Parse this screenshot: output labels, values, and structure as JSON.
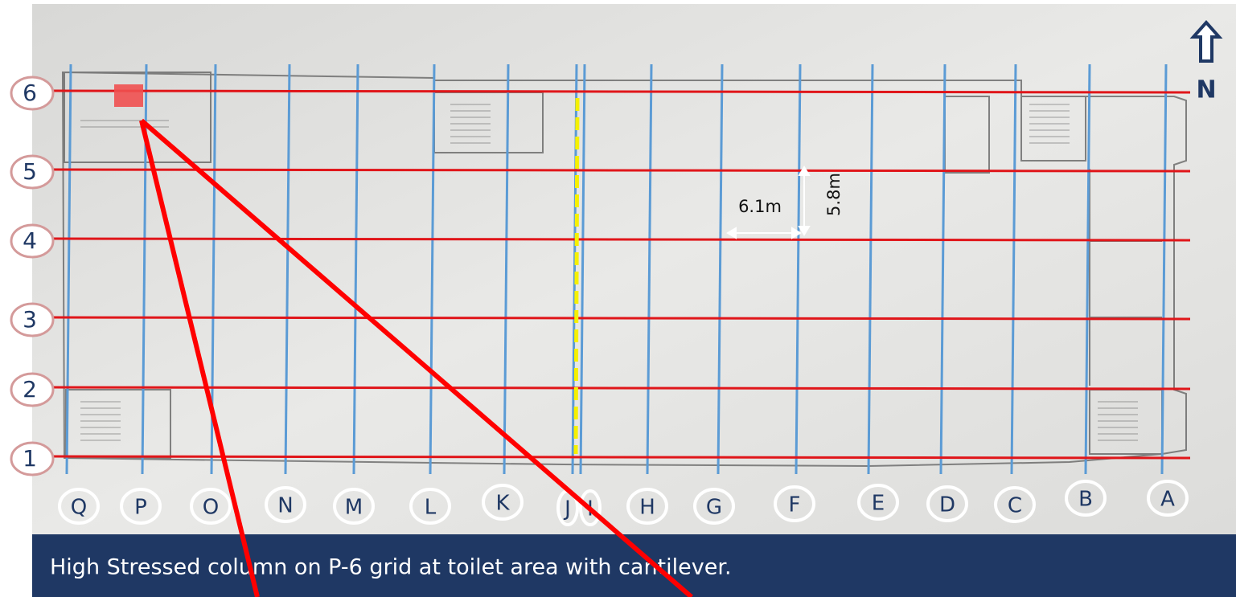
{
  "grid": {
    "rows": [
      "6",
      "5",
      "4",
      "3",
      "2",
      "1"
    ],
    "columns": [
      "Q",
      "P",
      "O",
      "N",
      "M",
      "L",
      "K",
      "J",
      "I",
      "H",
      "G",
      "F",
      "E",
      "D",
      "C",
      "B",
      "A"
    ]
  },
  "dimensions": {
    "span_x": "6.1m",
    "span_y": "5.8m"
  },
  "north": "N",
  "caption": "High Stressed column on P-6 grid at toilet area with cantilever."
}
